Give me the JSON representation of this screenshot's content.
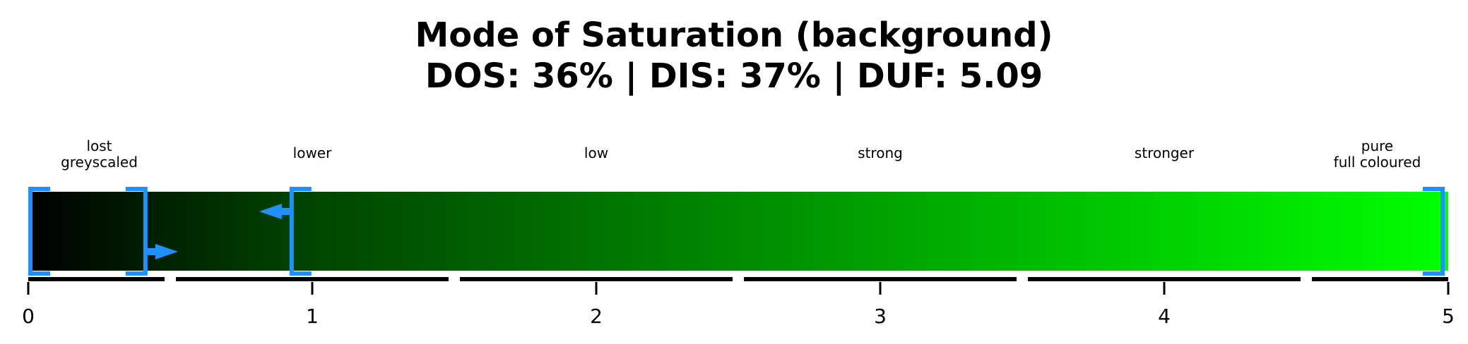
{
  "chart_data": {
    "type": "gradient-scale",
    "title": {
      "line1": "Mode of Saturation (background)",
      "line2": "DOS: 36% | DIS: 37% | DUF: 5.09"
    },
    "xlim": [
      0,
      5
    ],
    "ticks": [
      "0",
      "1",
      "2",
      "3",
      "4",
      "5"
    ],
    "tick_values": [
      0,
      1,
      2,
      3,
      4,
      5
    ],
    "segments": [
      {
        "line1": "lost",
        "line2": "greyscaled",
        "from": 0.0,
        "to": 0.5
      },
      {
        "line1": "lower",
        "line2": "",
        "from": 0.5,
        "to": 1.5
      },
      {
        "line1": "low",
        "line2": "",
        "from": 1.5,
        "to": 2.5
      },
      {
        "line1": "strong",
        "line2": "",
        "from": 2.5,
        "to": 3.5
      },
      {
        "line1": "stronger",
        "line2": "",
        "from": 3.5,
        "to": 4.5
      },
      {
        "line1": "pure",
        "line2": "full coloured",
        "from": 4.5,
        "to": 5.0
      }
    ],
    "gradient": {
      "start_color": "#000000",
      "mid_color": "#004000",
      "end_color": "#00ff00"
    },
    "brackets": [
      {
        "from": 0.0,
        "to": 0.42,
        "arrow": "right"
      },
      {
        "from": 0.92,
        "to": 5.0,
        "arrow": "left"
      }
    ],
    "colors": {
      "marker": "#1e90ff",
      "axis": "#000000"
    }
  }
}
